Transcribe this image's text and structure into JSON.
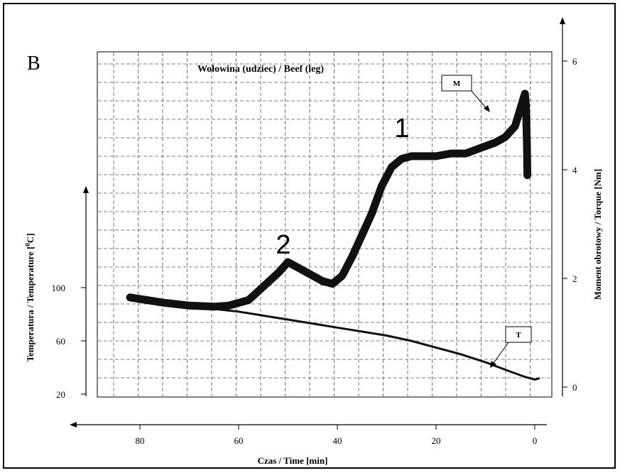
{
  "chart_data": {
    "type": "line",
    "panel_label": "B",
    "title": "Wołowina (udziec) / Beef (leg)",
    "xlabel": "Czas / Time [min]",
    "x_axis_reversed": true,
    "xlim": [
      88,
      -2
    ],
    "x_ticks": [
      "80",
      "60",
      "40",
      "20",
      "0"
    ],
    "y_left_label": "Temperatura / Temperature [0C]",
    "y_left_ticks": [
      "100",
      "60",
      "20"
    ],
    "y_left_lim": [
      20,
      100
    ],
    "y_right_label": "Moment obrotowy / Torque [Nm]",
    "y_right_ticks": [
      "6",
      "4",
      "2",
      "0"
    ],
    "y_right_lim": [
      0,
      6
    ],
    "grid": true,
    "peak_labels": [
      "1",
      "2"
    ],
    "series": [
      {
        "name": "M",
        "axis": "right",
        "x": [
          82,
          75,
          70,
          65,
          62,
          58,
          55,
          52,
          50,
          48,
          45,
          43,
          41,
          39,
          37,
          35,
          33,
          31,
          29,
          27,
          25,
          23,
          20,
          17,
          14,
          11,
          8,
          6,
          4,
          3,
          2,
          1.8,
          1.6,
          1.5
        ],
        "y": [
          1.65,
          1.55,
          1.5,
          1.48,
          1.5,
          1.6,
          1.85,
          2.1,
          2.3,
          2.2,
          2.05,
          1.95,
          1.9,
          2.05,
          2.4,
          2.8,
          3.2,
          3.7,
          4.05,
          4.2,
          4.25,
          4.25,
          4.25,
          4.3,
          4.3,
          4.4,
          4.5,
          4.6,
          4.8,
          5.1,
          5.4,
          5.2,
          4.5,
          3.9
        ]
      },
      {
        "name": "T",
        "axis": "left",
        "x": [
          70,
          65,
          60,
          55,
          50,
          45,
          40,
          35,
          30,
          25,
          20,
          15,
          10,
          5,
          2,
          0,
          -1
        ],
        "y": [
          85,
          84,
          82,
          79,
          76,
          73,
          70,
          67,
          64,
          60,
          55,
          50,
          44,
          37,
          33,
          31,
          32
        ]
      }
    ]
  }
}
